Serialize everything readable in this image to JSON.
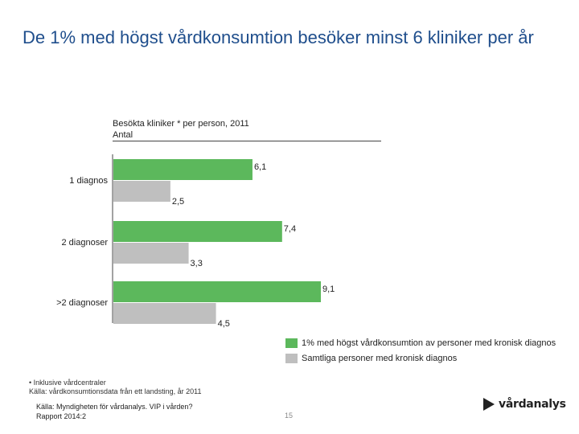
{
  "slide": {
    "title": "De 1% med högst vårdkonsumtion besöker minst 6 kliniker per år",
    "subtitle_line1": "Besökta kliniker * per person, 2011",
    "subtitle_line2": "Antal",
    "footnote_line1": "• Inklusive vårdcentraler",
    "footnote_line2": "Källa: vårdkonsumtionsdata från ett landsting, år 2011",
    "source_line1": "Källa: Myndigheten för vårdanalys. VIP i vården?",
    "source_line2": "Rapport 2014:2",
    "page_number": "15",
    "logo_text": "vårdanalys"
  },
  "colors": {
    "title": "#1f4e8c",
    "series_green": "#5cb85c",
    "series_gray": "#bfbfbf"
  },
  "chart_data": {
    "type": "bar",
    "orientation": "horizontal",
    "categories": [
      "1 diagnos",
      "2 diagnoser",
      ">2 diagnoser"
    ],
    "series": [
      {
        "name": "1% med högst vårdkonsumtion av personer med kronisk diagnos",
        "values": [
          6.1,
          7.4,
          9.1
        ],
        "labels": [
          "6,1",
          "7,4",
          "9,1"
        ]
      },
      {
        "name": "Samtliga personer med kronisk diagnos",
        "values": [
          2.5,
          3.3,
          4.5
        ],
        "labels": [
          "2,5",
          "3,3",
          "4,5"
        ]
      }
    ],
    "xlim": [
      0,
      9.1
    ],
    "grid": false,
    "legend_position": "bottom-right"
  }
}
